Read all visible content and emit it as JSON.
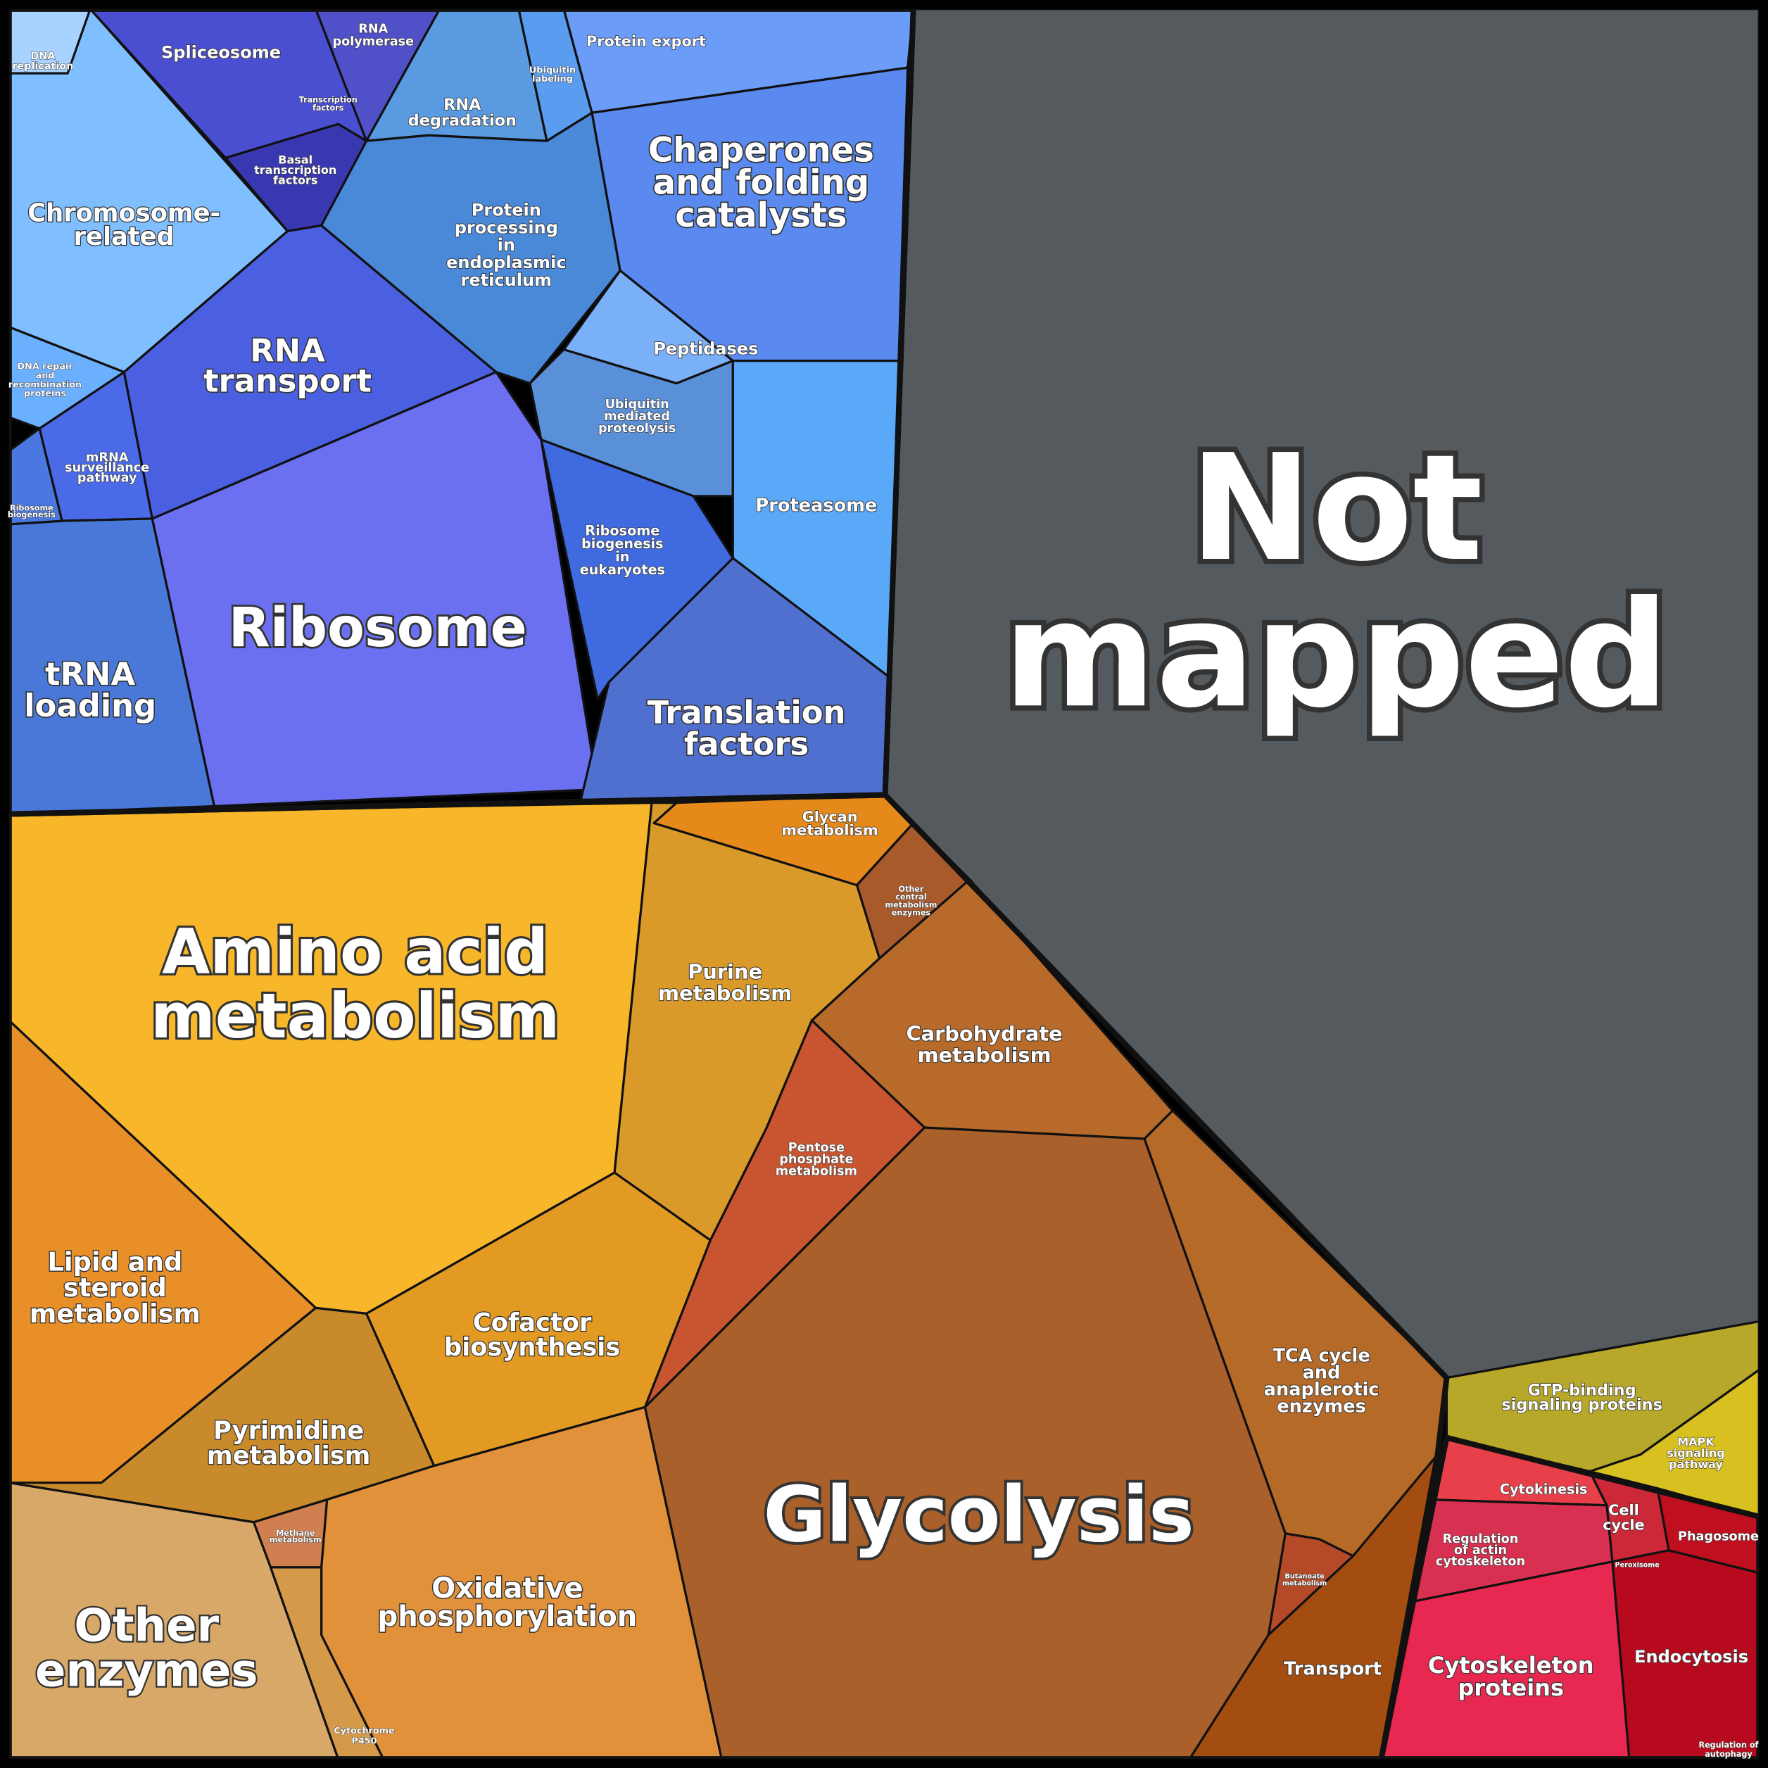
{
  "regions": [
    {
      "lines": [
        "Not",
        "mapped"
      ]
    },
    {
      "lines": [
        "Ribosome"
      ]
    },
    {
      "lines": [
        "Amino acid",
        "metabolism"
      ]
    },
    {
      "lines": [
        "Glycolysis"
      ]
    },
    {
      "lines": [
        "Chaperones",
        "and folding",
        "catalysts"
      ]
    },
    {
      "lines": [
        "RNA",
        "transport"
      ]
    },
    {
      "lines": [
        "tRNA",
        "loading"
      ]
    },
    {
      "lines": [
        "Translation",
        "factors"
      ]
    },
    {
      "lines": [
        "Chromosome-",
        "related"
      ]
    },
    {
      "lines": [
        "Other",
        "enzymes"
      ]
    },
    {
      "lines": [
        "Oxidative",
        "phosphorylation"
      ]
    },
    {
      "lines": [
        "Lipid and",
        "steroid",
        "metabolism"
      ]
    },
    {
      "lines": [
        "Pyrimidine",
        "metabolism"
      ]
    },
    {
      "lines": [
        "Cofactor",
        "biosynthesis"
      ]
    },
    {
      "lines": [
        "Purine",
        "metabolism"
      ]
    },
    {
      "lines": [
        "Carbohydrate",
        "metabolism"
      ]
    },
    {
      "lines": [
        "Cytoskeleton",
        "proteins"
      ]
    },
    {
      "lines": [
        "TCA cycle",
        "and",
        "anaplerotic",
        "enzymes"
      ]
    },
    {
      "lines": [
        "Transport"
      ]
    },
    {
      "lines": [
        "Endocytosis"
      ]
    },
    {
      "lines": [
        "GTP-binding",
        "signaling proteins"
      ]
    },
    {
      "lines": [
        "Proteasome"
      ]
    },
    {
      "lines": [
        "Peptidases"
      ]
    },
    {
      "lines": [
        "Spliceosome"
      ]
    },
    {
      "lines": [
        "Protein export"
      ]
    },
    {
      "lines": [
        "Protein",
        "processing",
        "in",
        "endoplasmic",
        "reticulum"
      ]
    },
    {
      "lines": [
        "RNA",
        "degradation"
      ]
    },
    {
      "lines": [
        "Glycan",
        "metabolism"
      ]
    },
    {
      "lines": [
        "Pentose",
        "phosphate",
        "metabolism"
      ]
    },
    {
      "lines": [
        "Ribosome",
        "biogenesis",
        "in",
        "eukaryotes"
      ]
    },
    {
      "lines": [
        "Ubiquitin",
        "mediated",
        "proteolysis"
      ]
    },
    {
      "lines": [
        "mRNA",
        "surveillance",
        "pathway"
      ]
    },
    {
      "lines": [
        "RNA",
        "polymerase"
      ]
    },
    {
      "lines": [
        "Basal",
        "transcription",
        "factors"
      ]
    },
    {
      "lines": [
        "Cytokinesis"
      ]
    },
    {
      "lines": [
        "Cell",
        "cycle"
      ]
    },
    {
      "lines": [
        "Phagosome"
      ]
    },
    {
      "lines": [
        "Regulation",
        "of actin",
        "cytoskeleton"
      ]
    },
    {
      "lines": [
        "MAPK",
        "signaling",
        "pathway"
      ]
    },
    {
      "lines": [
        "DNA",
        "replication"
      ]
    },
    {
      "lines": [
        "DNA repair",
        "and",
        "recombination",
        "proteins"
      ]
    },
    {
      "lines": [
        "Ribosome",
        "biogenesis"
      ]
    },
    {
      "lines": [
        "Ubiquitin",
        "labeling"
      ]
    },
    {
      "lines": [
        "Transcription",
        "factors"
      ]
    },
    {
      "lines": [
        "Other",
        "central",
        "metabolism",
        "enzymes"
      ]
    },
    {
      "lines": [
        "Methane",
        "metabolism"
      ]
    },
    {
      "lines": [
        "Cytochrome",
        "P450"
      ]
    },
    {
      "lines": [
        "Butanoate",
        "metabolism"
      ]
    },
    {
      "lines": [
        "Peroxisome"
      ]
    },
    {
      "lines": [
        "Regulation of",
        "autophagy"
      ]
    }
  ]
}
